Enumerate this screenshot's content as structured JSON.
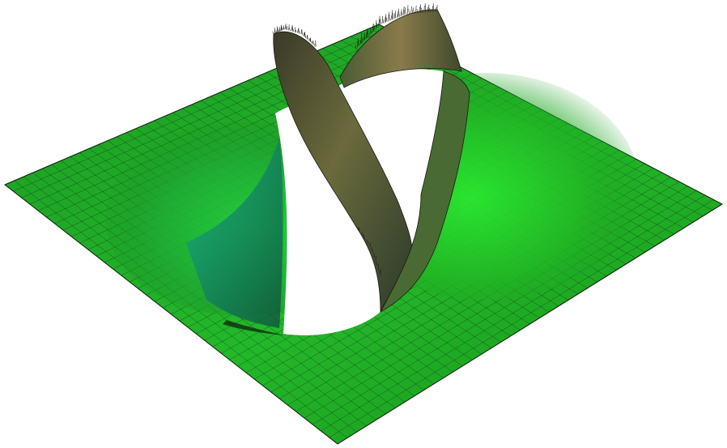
{
  "scene": {
    "kind": "3d-mesh-surface-render",
    "background_color": "#ffffff",
    "surface_color": "#1faa1f",
    "highlight_color": "#27e033",
    "shadow_color": "#2a3324",
    "rim_color": "#6b5a3a",
    "mesh_line_color": "#0b1a0b",
    "features": [
      "flat-plane",
      "helical-spike-ridge",
      "central-hole"
    ]
  }
}
